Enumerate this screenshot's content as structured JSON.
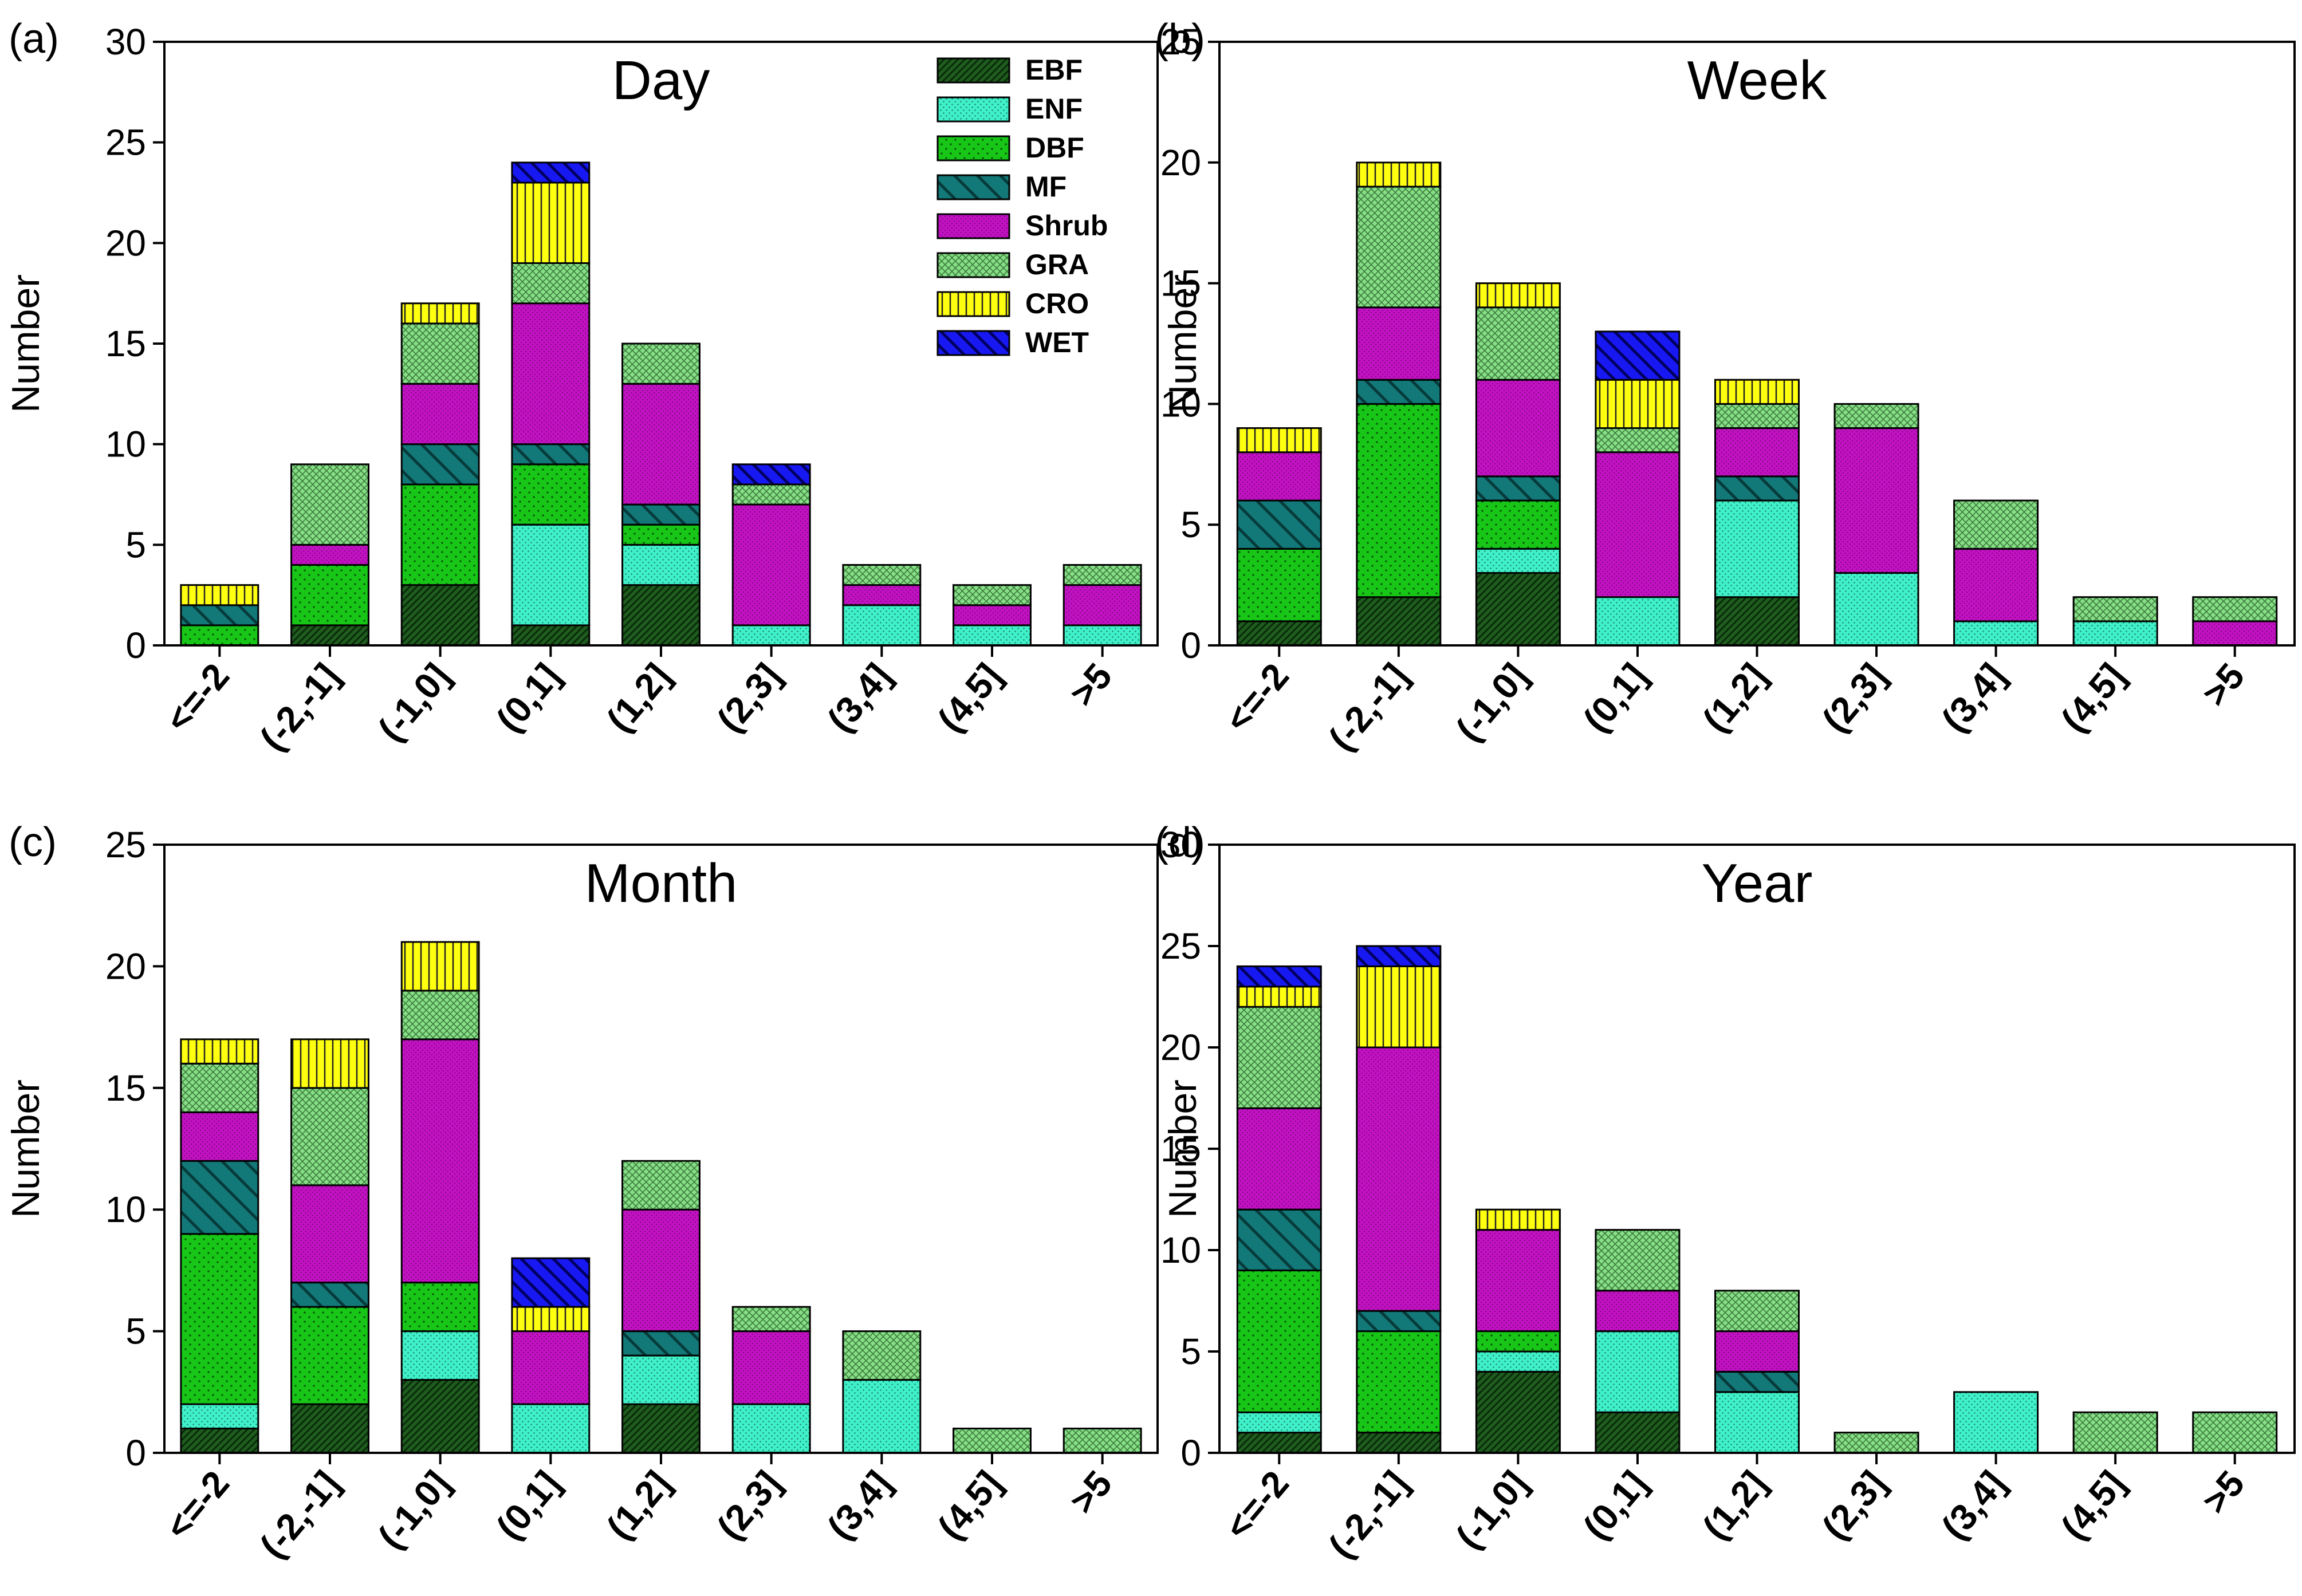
{
  "colors": {
    "EBF": "#1f5d1f",
    "ENF": "#3ff0c8",
    "DBF": "#17c617",
    "MF": "#137878",
    "Shrub": "#c211c2",
    "GRA": "#86df86",
    "CRO": "#ffff10",
    "WET": "#1818f2"
  },
  "chart_data": [
    {
      "type": "bar",
      "stacked": true,
      "panel_label": "(a)",
      "title": "Day",
      "ylabel": "Number",
      "ylim": [
        0,
        30
      ],
      "yticks": [
        "0",
        "5",
        "10",
        "15",
        "20",
        "25",
        "30"
      ],
      "legend": {
        "placement": "top-right",
        "entries": [
          "EBF",
          "ENF",
          "DBF",
          "MF",
          "Shrub",
          "GRA",
          "CRO",
          "WET"
        ]
      },
      "categories": [
        "<=-2",
        "(-2,-1]",
        "(-1,0]",
        "(0,1]",
        "(1,2]",
        "(2,3]",
        "(3,4]",
        "(4,5]",
        ">5"
      ],
      "series": [
        {
          "name": "EBF",
          "values": [
            0,
            1,
            3,
            1,
            3,
            0,
            0,
            0,
            0
          ]
        },
        {
          "name": "ENF",
          "values": [
            0,
            0,
            0,
            5,
            2,
            1,
            2,
            1,
            1
          ]
        },
        {
          "name": "DBF",
          "values": [
            1,
            3,
            5,
            3,
            1,
            0,
            0,
            0,
            0
          ]
        },
        {
          "name": "MF",
          "values": [
            1,
            0,
            2,
            1,
            1,
            0,
            0,
            0,
            0
          ]
        },
        {
          "name": "Shrub",
          "values": [
            0,
            1,
            3,
            7,
            6,
            6,
            1,
            1,
            2
          ]
        },
        {
          "name": "GRA",
          "values": [
            0,
            4,
            3,
            2,
            2,
            1,
            1,
            1,
            1
          ]
        },
        {
          "name": "CRO",
          "values": [
            1,
            0,
            1,
            4,
            0,
            0,
            0,
            0,
            0
          ]
        },
        {
          "name": "WET",
          "values": [
            0,
            0,
            0,
            1,
            0,
            1,
            0,
            0,
            0
          ]
        }
      ]
    },
    {
      "type": "bar",
      "stacked": true,
      "panel_label": "(b)",
      "title": "Week",
      "ylabel": "Number",
      "ylim": [
        0,
        25
      ],
      "yticks": [
        "0",
        "5",
        "10",
        "15",
        "20",
        "25"
      ],
      "categories": [
        "<=-2",
        "(-2,-1]",
        "(-1,0]",
        "(0,1]",
        "(1,2]",
        "(2,3]",
        "(3,4]",
        "(4,5]",
        ">5"
      ],
      "series": [
        {
          "name": "EBF",
          "values": [
            1,
            2,
            3,
            0,
            2,
            0,
            0,
            0,
            0
          ]
        },
        {
          "name": "ENF",
          "values": [
            0,
            0,
            1,
            2,
            4,
            3,
            1,
            1,
            0
          ]
        },
        {
          "name": "DBF",
          "values": [
            3,
            8,
            2,
            0,
            0,
            0,
            0,
            0,
            0
          ]
        },
        {
          "name": "MF",
          "values": [
            2,
            1,
            1,
            0,
            1,
            0,
            0,
            0,
            0
          ]
        },
        {
          "name": "Shrub",
          "values": [
            2,
            3,
            4,
            6,
            2,
            6,
            3,
            0,
            1
          ]
        },
        {
          "name": "GRA",
          "values": [
            0,
            5,
            3,
            1,
            1,
            1,
            2,
            1,
            1
          ]
        },
        {
          "name": "CRO",
          "values": [
            1,
            1,
            1,
            2,
            1,
            0,
            0,
            0,
            0
          ]
        },
        {
          "name": "WET",
          "values": [
            0,
            0,
            0,
            2,
            0,
            0,
            0,
            0,
            0
          ]
        }
      ]
    },
    {
      "type": "bar",
      "stacked": true,
      "panel_label": "(c)",
      "title": "Month",
      "ylabel": "Number",
      "ylim": [
        0,
        25
      ],
      "yticks": [
        "0",
        "5",
        "10",
        "15",
        "20",
        "25"
      ],
      "categories": [
        "<=-2",
        "(-2,-1]",
        "(-1,0]",
        "(0,1]",
        "(1,2]",
        "(2,3]",
        "(3,4]",
        "(4,5]",
        ">5"
      ],
      "series": [
        {
          "name": "EBF",
          "values": [
            1,
            2,
            3,
            0,
            2,
            0,
            0,
            0,
            0
          ]
        },
        {
          "name": "ENF",
          "values": [
            1,
            0,
            2,
            2,
            2,
            2,
            3,
            0,
            0
          ]
        },
        {
          "name": "DBF",
          "values": [
            7,
            4,
            2,
            0,
            0,
            0,
            0,
            0,
            0
          ]
        },
        {
          "name": "MF",
          "values": [
            3,
            1,
            0,
            0,
            1,
            0,
            0,
            0,
            0
          ]
        },
        {
          "name": "Shrub",
          "values": [
            2,
            4,
            10,
            3,
            5,
            3,
            0,
            0,
            0
          ]
        },
        {
          "name": "GRA",
          "values": [
            2,
            4,
            2,
            0,
            2,
            1,
            2,
            1,
            1
          ]
        },
        {
          "name": "CRO",
          "values": [
            1,
            2,
            2,
            1,
            0,
            0,
            0,
            0,
            0
          ]
        },
        {
          "name": "WET",
          "values": [
            0,
            0,
            0,
            2,
            0,
            0,
            0,
            0,
            0
          ]
        }
      ]
    },
    {
      "type": "bar",
      "stacked": true,
      "panel_label": "(d)",
      "title": "Year",
      "ylabel": "Number",
      "ylim": [
        0,
        30
      ],
      "yticks": [
        "0",
        "5",
        "10",
        "15",
        "20",
        "25",
        "30"
      ],
      "categories": [
        "<=-2",
        "(-2,-1]",
        "(-1,0]",
        "(0,1]",
        "(1,2]",
        "(2,3]",
        "(3,4]",
        "(4,5]",
        ">5"
      ],
      "series": [
        {
          "name": "EBF",
          "values": [
            1,
            1,
            4,
            2,
            0,
            0,
            0,
            0,
            0
          ]
        },
        {
          "name": "ENF",
          "values": [
            1,
            0,
            1,
            4,
            3,
            0,
            3,
            0,
            0
          ]
        },
        {
          "name": "DBF",
          "values": [
            7,
            5,
            1,
            0,
            0,
            0,
            0,
            0,
            0
          ]
        },
        {
          "name": "MF",
          "values": [
            3,
            1,
            0,
            0,
            1,
            0,
            0,
            0,
            0
          ]
        },
        {
          "name": "Shrub",
          "values": [
            5,
            13,
            5,
            2,
            2,
            0,
            0,
            0,
            0
          ]
        },
        {
          "name": "GRA",
          "values": [
            5,
            0,
            0,
            3,
            2,
            1,
            0,
            2,
            2
          ]
        },
        {
          "name": "CRO",
          "values": [
            1,
            4,
            1,
            0,
            0,
            0,
            0,
            0,
            0
          ]
        },
        {
          "name": "WET",
          "values": [
            1,
            1,
            0,
            0,
            0,
            0,
            0,
            0,
            0
          ]
        }
      ]
    }
  ]
}
